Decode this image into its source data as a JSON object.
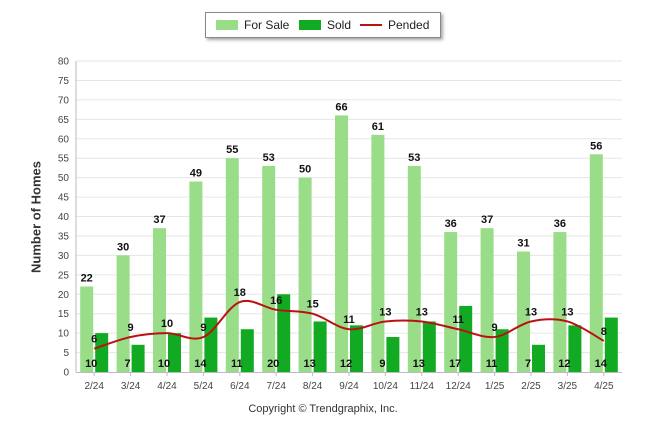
{
  "chart_data": {
    "type": "bar",
    "ylabel": "Number of Homes",
    "xlabel": "",
    "ylim": [
      0,
      80
    ],
    "yticks": [
      0,
      5,
      10,
      15,
      20,
      25,
      30,
      35,
      40,
      45,
      50,
      55,
      60,
      65,
      70,
      75,
      80
    ],
    "categories": [
      "2/24",
      "3/24",
      "4/24",
      "5/24",
      "6/24",
      "7/24",
      "8/24",
      "9/24",
      "10/24",
      "11/24",
      "12/24",
      "1/25",
      "2/25",
      "3/25",
      "4/25"
    ],
    "series": [
      {
        "name": "For Sale",
        "type": "bar",
        "color": "#99dd88",
        "values": [
          22,
          30,
          37,
          49,
          55,
          53,
          50,
          66,
          61,
          53,
          36,
          37,
          31,
          36,
          56
        ]
      },
      {
        "name": "Sold",
        "type": "bar",
        "color": "#11aa22",
        "values": [
          10,
          7,
          10,
          14,
          11,
          20,
          13,
          12,
          9,
          13,
          17,
          11,
          7,
          12,
          14
        ]
      },
      {
        "name": "Pended",
        "type": "line",
        "color": "#bb1111",
        "values": [
          6,
          9,
          10,
          9,
          18,
          16,
          15,
          11,
          13,
          13,
          11,
          9,
          13,
          13,
          8
        ]
      }
    ],
    "legend_position": "top-center",
    "grid": true
  },
  "footer": {
    "copyright": "Copyright © Trendgraphix, Inc."
  }
}
